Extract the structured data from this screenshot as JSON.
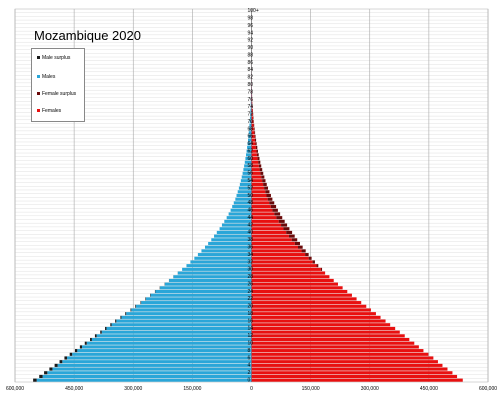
{
  "chart_data": {
    "type": "bar",
    "title": "Mozambique 2020",
    "orientation": "horizontal-pyramid",
    "xlim": [
      -600000,
      600000
    ],
    "x_tick_values": [
      -600000,
      -450000,
      -300000,
      -150000,
      0,
      150000,
      300000,
      450000,
      600000
    ],
    "x_tick_labels": [
      "600,000",
      "450,000",
      "300,000",
      "150,000",
      "0",
      "150,000",
      "300,000",
      "450,000",
      "600,000"
    ],
    "y_tick_labels": [
      "0",
      "2",
      "4",
      "6",
      "8",
      "10",
      "12",
      "14",
      "16",
      "18",
      "20",
      "22",
      "24",
      "26",
      "28",
      "30",
      "32",
      "34",
      "36",
      "38",
      "40",
      "42",
      "44",
      "46",
      "48",
      "50",
      "52",
      "54",
      "56",
      "58",
      "60",
      "62",
      "64",
      "66",
      "68",
      "70",
      "72",
      "74",
      "76",
      "78",
      "80",
      "82",
      "84",
      "86",
      "88",
      "90",
      "92",
      "94",
      "96",
      "98",
      "100+"
    ],
    "age_groups": [
      "0",
      "1",
      "2",
      "3",
      "4",
      "5",
      "6",
      "7",
      "8",
      "9",
      "10",
      "11",
      "12",
      "13",
      "14",
      "15",
      "16",
      "17",
      "18",
      "19",
      "20",
      "21",
      "22",
      "23",
      "24",
      "25",
      "26",
      "27",
      "28",
      "29",
      "30",
      "31",
      "32",
      "33",
      "34",
      "35",
      "36",
      "37",
      "38",
      "39",
      "40",
      "41",
      "42",
      "43",
      "44",
      "45",
      "46",
      "47",
      "48",
      "49",
      "50",
      "51",
      "52",
      "53",
      "54",
      "55",
      "56",
      "57",
      "58",
      "59",
      "60",
      "61",
      "62",
      "63",
      "64",
      "65",
      "66",
      "67",
      "68",
      "69",
      "70",
      "71",
      "72",
      "73",
      "74",
      "75",
      "76",
      "77",
      "78",
      "79",
      "80",
      "81",
      "82",
      "83",
      "84",
      "85",
      "86",
      "87",
      "88",
      "89",
      "90",
      "91",
      "92",
      "93",
      "94",
      "95",
      "96",
      "97",
      "98",
      "99",
      "100+"
    ],
    "legend": {
      "position": "top-left",
      "items": [
        {
          "label": "Male surplus",
          "color": "#1a1a1a"
        },
        {
          "label": "Males",
          "color": "#2aa6d8"
        },
        {
          "label": "Female surplus",
          "color": "#6b0a0a"
        },
        {
          "label": "Females",
          "color": "#e81010"
        }
      ]
    },
    "series": [
      {
        "name": "Males",
        "color": "#2aa6d8",
        "values": [
          545000,
          530000,
          518000,
          505000,
          492000,
          480000,
          468000,
          455000,
          442000,
          430000,
          418000,
          405000,
          393000,
          380000,
          368000,
          355000,
          343000,
          330000,
          318000,
          305000,
          293000,
          280000,
          268000,
          256000,
          244000,
          232000,
          220000,
          209000,
          198000,
          187000,
          176000,
          165000,
          155000,
          145000,
          136000,
          127000,
          118000,
          110000,
          102000,
          95000,
          88000,
          81000,
          75000,
          69000,
          63000,
          58000,
          53000,
          49000,
          45000,
          41000,
          38000,
          35000,
          32000,
          29500,
          27000,
          24800,
          22600,
          20600,
          18700,
          17000,
          15400,
          13900,
          12500,
          11200,
          10000,
          8900,
          7900,
          7000,
          6100,
          5300,
          4600,
          3950,
          3350,
          2800,
          2320,
          1890,
          1520,
          1200,
          930,
          710,
          530,
          390,
          280,
          195,
          135,
          90,
          60,
          40,
          26,
          17,
          11,
          7,
          4,
          3,
          2,
          1,
          1,
          0,
          0,
          0,
          0
        ]
      },
      {
        "name": "Male surplus",
        "color": "#1a1a1a",
        "values": [
          9000,
          8500,
          8200,
          7800,
          7500,
          7000,
          6600,
          6200,
          5800,
          5400,
          5000,
          4600,
          4200,
          3800,
          3500,
          3200,
          2900,
          2600,
          2300,
          2000,
          1800,
          1600,
          1400,
          1200,
          1000,
          800,
          600,
          400,
          300,
          200,
          0,
          0,
          0,
          0,
          0,
          0,
          0,
          0,
          0,
          0,
          0,
          0,
          0,
          0,
          0,
          0,
          0,
          0,
          0,
          0,
          0,
          0,
          0,
          0,
          0,
          0,
          0,
          0,
          0,
          0,
          0,
          0,
          0,
          0,
          0,
          0,
          0,
          0,
          0,
          0,
          0,
          0,
          0,
          0,
          0,
          0,
          0,
          0,
          0,
          0,
          0,
          0,
          0,
          0,
          0,
          0,
          0,
          0,
          0,
          0,
          0,
          0,
          0,
          0,
          0,
          0,
          0,
          0,
          0,
          0,
          0
        ]
      },
      {
        "name": "Females",
        "color": "#e81010",
        "values": [
          536000,
          521500,
          509800,
          497200,
          484500,
          473000,
          461400,
          448800,
          436200,
          424600,
          413000,
          400400,
          388800,
          376200,
          364500,
          351800,
          340100,
          327400,
          315700,
          303000,
          291200,
          278400,
          266600,
          254800,
          243000,
          231200,
          219400,
          208600,
          197700,
          186800,
          176000,
          165000,
          155000,
          145000,
          136000,
          127000,
          118000,
          110000,
          102000,
          95000,
          88000,
          81000,
          75000,
          69000,
          63000,
          58000,
          53000,
          49000,
          45000,
          41000,
          38000,
          35000,
          32000,
          29500,
          27000,
          24800,
          22600,
          20600,
          18700,
          17000,
          15400,
          13900,
          12500,
          11200,
          10000,
          8900,
          7900,
          7000,
          6100,
          5300,
          4600,
          3950,
          3350,
          2800,
          2320,
          1890,
          1520,
          1200,
          930,
          710,
          530,
          390,
          280,
          195,
          135,
          90,
          60,
          40,
          26,
          17,
          11,
          7,
          4,
          3,
          2,
          1,
          1,
          0,
          0,
          0,
          0
        ]
      },
      {
        "name": "Female surplus",
        "color": "#6b0a0a",
        "values": [
          0,
          0,
          0,
          0,
          0,
          0,
          0,
          0,
          0,
          0,
          0,
          0,
          0,
          0,
          0,
          0,
          0,
          0,
          0,
          0,
          0,
          0,
          0,
          0,
          0,
          0,
          0,
          0,
          0,
          0,
          3000,
          4500,
          6000,
          7500,
          9000,
          10500,
          11800,
          13000,
          14000,
          14600,
          15000,
          15200,
          15300,
          15200,
          15000,
          14600,
          14000,
          13400,
          12700,
          12000,
          11300,
          10600,
          9900,
          9200,
          8500,
          7800,
          7200,
          6600,
          6000,
          5400,
          4900,
          4400,
          3900,
          3500,
          3100,
          2750,
          2400,
          2100,
          1800,
          1550,
          1320,
          1120,
          940,
          790,
          650,
          530,
          430,
          340,
          270,
          210,
          160,
          120,
          90,
          65,
          45,
          30,
          20,
          13,
          8,
          5,
          3,
          2,
          1,
          1,
          0,
          0,
          0,
          0,
          0,
          0,
          0
        ]
      }
    ],
    "grid": true
  }
}
